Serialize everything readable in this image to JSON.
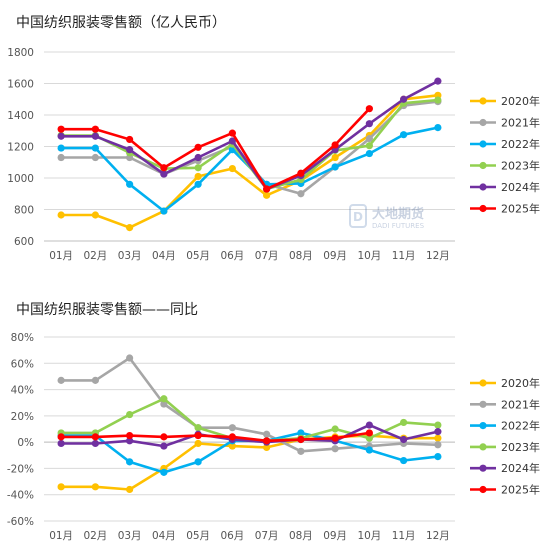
{
  "charts": [
    {
      "title": "中国纺织服装零售额（亿人民币）"
    },
    {
      "title": "中国纺织服装零售额——同比"
    }
  ],
  "watermark": {
    "name": "大地期货",
    "sub": "DADI FUTURES"
  },
  "chart_data": [
    {
      "type": "line",
      "title": "中国纺织服装零售额（亿人民币）",
      "xlabel": "",
      "ylabel": "",
      "categories": [
        "01月",
        "02月",
        "03月",
        "04月",
        "05月",
        "06月",
        "07月",
        "08月",
        "09月",
        "10月",
        "11月",
        "12月"
      ],
      "ylim": [
        600,
        1800
      ],
      "yticks": [
        600,
        800,
        1000,
        1200,
        1400,
        1600,
        1800
      ],
      "ytick_labels": [
        "600",
        "800",
        "1000",
        "1200",
        "1400",
        "1600",
        "1800"
      ],
      "grid": true,
      "legend_position": "right",
      "series": [
        {
          "name": "2020年",
          "color": "#FFC000",
          "values": [
            765,
            765,
            685,
            790,
            1010,
            1060,
            890,
            985,
            1130,
            1270,
            1500,
            1525
          ]
        },
        {
          "name": "2021年",
          "color": "#A6A6A6",
          "values": [
            1130,
            1130,
            1130,
            1025,
            1110,
            1200,
            960,
            900,
            1070,
            1250,
            1460,
            1485
          ]
        },
        {
          "name": "2022年",
          "color": "#00B0F0",
          "values": [
            1190,
            1190,
            960,
            790,
            960,
            1180,
            960,
            965,
            1070,
            1155,
            1275,
            1320
          ]
        },
        {
          "name": "2023年",
          "color": "#92D050",
          "values": [
            1270,
            1270,
            1160,
            1060,
            1065,
            1215,
            930,
            990,
            1175,
            1205,
            1475,
            1495
          ]
        },
        {
          "name": "2024年",
          "color": "#7030A0",
          "values": [
            1265,
            1265,
            1180,
            1025,
            1130,
            1235,
            930,
            1015,
            1180,
            1345,
            1500,
            1615
          ]
        },
        {
          "name": "2025年",
          "color": "#FF0000",
          "values": [
            1310,
            1310,
            1245,
            1065,
            1195,
            1285,
            930,
            1030,
            1210,
            1440,
            null,
            null
          ]
        }
      ]
    },
    {
      "type": "line",
      "title": "中国纺织服装零售额——同比",
      "xlabel": "",
      "ylabel": "",
      "categories": [
        "01月",
        "02月",
        "03月",
        "04月",
        "05月",
        "06月",
        "07月",
        "08月",
        "09月",
        "10月",
        "11月",
        "12月"
      ],
      "ylim": [
        -60,
        80
      ],
      "yticks": [
        -60,
        -40,
        -20,
        0,
        20,
        40,
        60,
        80
      ],
      "ytick_labels": [
        "-60%",
        "-40%",
        "-20%",
        "0%",
        "20%",
        "40%",
        "60%",
        "80%"
      ],
      "grid": true,
      "legend_position": "right",
      "series": [
        {
          "name": "2020年",
          "color": "#FFC000",
          "values": [
            -34,
            -34,
            -36,
            -20,
            -1,
            -3,
            -4,
            2,
            4,
            5,
            3,
            3
          ]
        },
        {
          "name": "2021年",
          "color": "#A6A6A6",
          "values": [
            47,
            47,
            64,
            29,
            11,
            11,
            6,
            -7,
            -5,
            -3,
            -1,
            -2
          ]
        },
        {
          "name": "2022年",
          "color": "#00B0F0",
          "values": [
            5,
            5,
            -15,
            -23,
            -15,
            1,
            1,
            7,
            1,
            -6,
            -14,
            -11
          ]
        },
        {
          "name": "2023年",
          "color": "#92D050",
          "values": [
            7,
            7,
            21,
            33,
            11,
            3,
            1,
            3,
            10,
            3,
            15,
            13
          ]
        },
        {
          "name": "2024年",
          "color": "#7030A0",
          "values": [
            -1,
            -1,
            1,
            -3,
            6,
            2,
            0,
            2,
            1,
            13,
            2,
            8
          ]
        },
        {
          "name": "2025年",
          "color": "#FF0000",
          "values": [
            4,
            4,
            5,
            4,
            5,
            4,
            1,
            2,
            3,
            7,
            null,
            null
          ]
        }
      ]
    }
  ]
}
